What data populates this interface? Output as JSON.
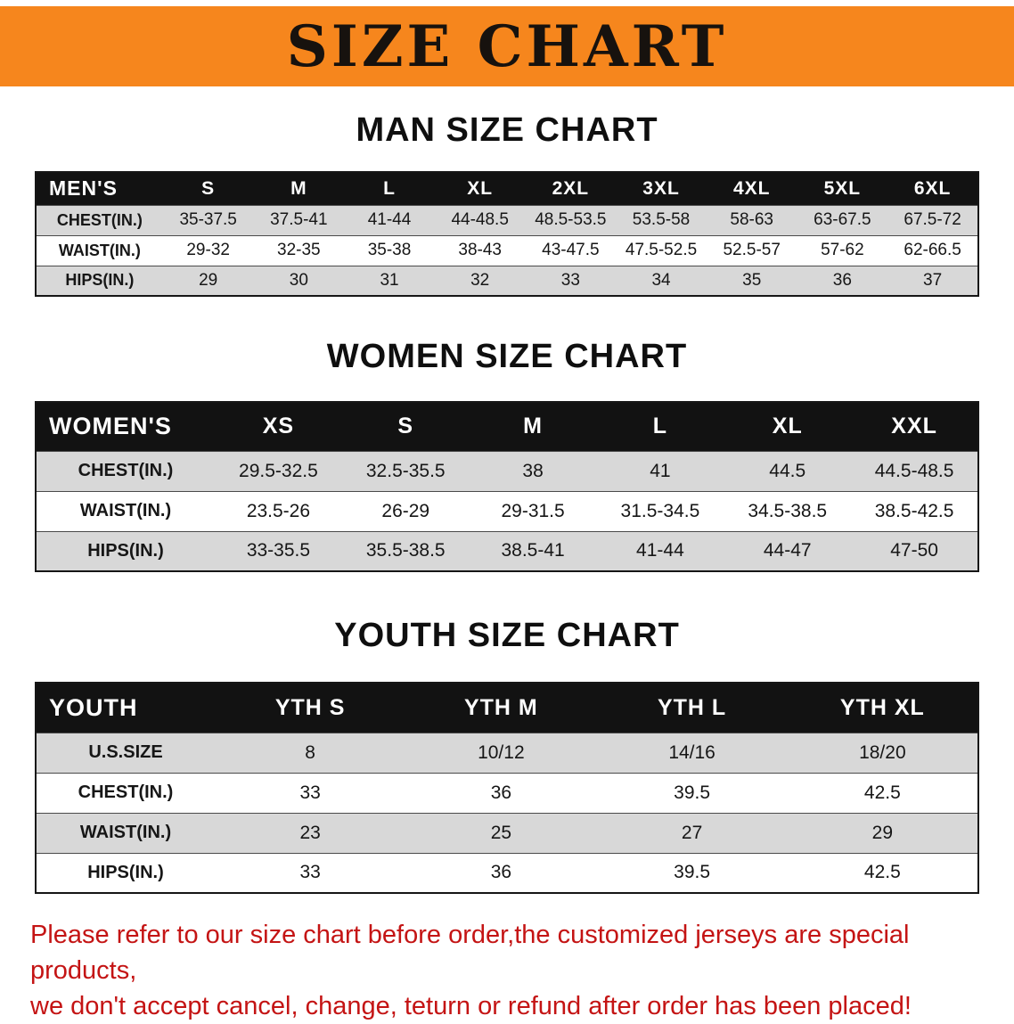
{
  "banner": {
    "title": "SIZE CHART",
    "bg_color": "#f6861d"
  },
  "tables": [
    {
      "name": "men",
      "title": "MAN SIZE CHART",
      "header": [
        "MEN'S",
        "S",
        "M",
        "L",
        "XL",
        "2XL",
        "3XL",
        "4XL",
        "5XL",
        "6XL"
      ],
      "rows": [
        [
          "CHEST(IN.)",
          "35-37.5",
          "37.5-41",
          "41-44",
          "44-48.5",
          "48.5-53.5",
          "53.5-58",
          "58-63",
          "63-67.5",
          "67.5-72"
        ],
        [
          "WAIST(IN.)",
          "29-32",
          "32-35",
          "35-38",
          "38-43",
          "43-47.5",
          "47.5-52.5",
          "52.5-57",
          "57-62",
          "62-66.5"
        ],
        [
          "HIPS(IN.)",
          "29",
          "30",
          "31",
          "32",
          "33",
          "34",
          "35",
          "36",
          "37"
        ]
      ]
    },
    {
      "name": "women",
      "title": "WOMEN SIZE CHART",
      "header": [
        "WOMEN'S",
        "XS",
        "S",
        "M",
        "L",
        "XL",
        "XXL"
      ],
      "rows": [
        [
          "CHEST(IN.)",
          "29.5-32.5",
          "32.5-35.5",
          "38",
          "41",
          "44.5",
          "44.5-48.5"
        ],
        [
          "WAIST(IN.)",
          "23.5-26",
          "26-29",
          "29-31.5",
          "31.5-34.5",
          "34.5-38.5",
          "38.5-42.5"
        ],
        [
          "HIPS(IN.)",
          "33-35.5",
          "35.5-38.5",
          "38.5-41",
          "41-44",
          "44-47",
          "47-50"
        ]
      ]
    },
    {
      "name": "youth",
      "title": "YOUTH SIZE CHART",
      "header": [
        "YOUTH",
        "YTH S",
        "YTH M",
        "YTH L",
        "YTH XL"
      ],
      "rows": [
        [
          "U.S.SIZE",
          "8",
          "10/12",
          "14/16",
          "18/20"
        ],
        [
          "CHEST(IN.)",
          "33",
          "36",
          "39.5",
          "42.5"
        ],
        [
          "WAIST(IN.)",
          "23",
          "25",
          "27",
          "29"
        ],
        [
          "HIPS(IN.)",
          "33",
          "36",
          "39.5",
          "42.5"
        ]
      ]
    }
  ],
  "footer": {
    "line1": "Please refer to our size chart before order,the customized jerseys are special products,",
    "line2": "we don't accept cancel, change, teturn or refund after order has been placed!",
    "text_color": "#c41414"
  }
}
